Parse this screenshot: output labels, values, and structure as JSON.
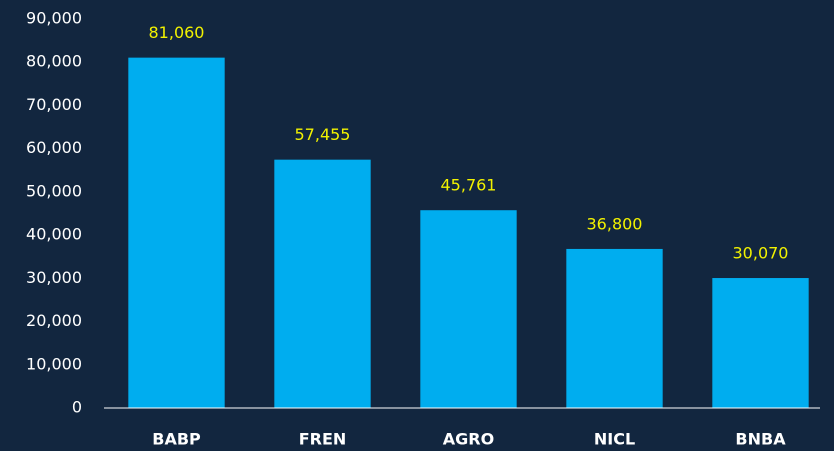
{
  "chart_data": {
    "type": "bar",
    "categories": [
      "BABP",
      "FREN",
      "AGRO",
      "NICL",
      "BNBA"
    ],
    "values": [
      81060,
      57455,
      45761,
      36800,
      30070
    ],
    "value_labels": [
      "81,060",
      "57,455",
      "45,761",
      "36,800",
      "30,070"
    ],
    "color": "#00adef",
    "ylim": [
      0,
      90000
    ],
    "yticks": [
      0,
      {
        "value": 10000,
        "label": "10,000"
      },
      {
        "value": 20000,
        "label": "20,000"
      },
      {
        "value": 30000,
        "label": "30,000"
      },
      {
        "value": 40000,
        "label": "40,000"
      },
      {
        "value": 50000,
        "label": "50,000"
      },
      {
        "value": 60000,
        "label": "60,000"
      },
      {
        "value": 70000,
        "label": "70,000"
      },
      {
        "value": 80000,
        "label": "80,000"
      },
      {
        "value": 90000,
        "label": "90,000"
      }
    ],
    "grid": false
  }
}
